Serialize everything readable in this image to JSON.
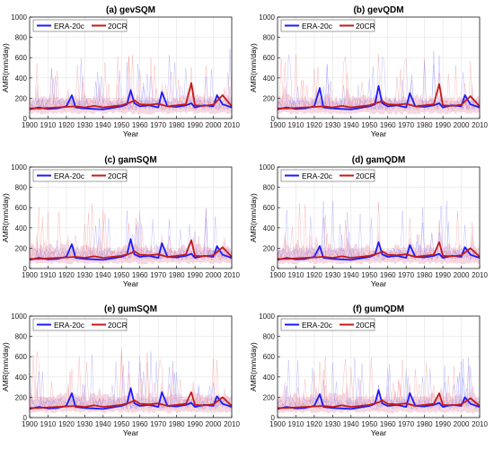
{
  "colors": {
    "era": "#1a1aff",
    "era_light": "#8c8cff",
    "cr": "#c41a1a",
    "cr_light": "#f08a8a",
    "ens_fill": "#f3c9d6",
    "axis": "#000000",
    "grid": "#e3e3e3"
  },
  "chart_data": [
    {
      "type": "line",
      "title": "(a) gevSQM",
      "xlabel": "Year",
      "ylabel": "AMR(mm/day)",
      "xlim": [
        1900,
        2010
      ],
      "ylim": [
        0,
        1000
      ],
      "xticks": [
        "1900",
        "1910",
        "1920",
        "1930",
        "1940",
        "1950",
        "1960",
        "1970",
        "1980",
        "1990",
        "2000",
        "2010"
      ],
      "yticks": [
        "0",
        "200",
        "400",
        "600",
        "800",
        "1000"
      ],
      "grid": true,
      "legend": "top-left",
      "series": [
        {
          "name": "ERA-20c",
          "x": [
            1900,
            1905,
            1910,
            1915,
            1920,
            1923,
            1925,
            1930,
            1935,
            1940,
            1945,
            1950,
            1953,
            1955,
            1957,
            1960,
            1965,
            1970,
            1972,
            1975,
            1980,
            1985,
            1988,
            1990,
            1995,
            2000,
            2002,
            2005,
            2010
          ],
          "values": [
            90,
            110,
            95,
            100,
            120,
            230,
            110,
            100,
            95,
            90,
            105,
            120,
            140,
            280,
            150,
            120,
            130,
            110,
            260,
            120,
            115,
            130,
            150,
            110,
            130,
            120,
            230,
            140,
            110
          ]
        },
        {
          "name": "20CR",
          "x": [
            1900,
            1905,
            1910,
            1915,
            1920,
            1925,
            1930,
            1935,
            1940,
            1945,
            1950,
            1955,
            1957,
            1960,
            1965,
            1970,
            1975,
            1980,
            1985,
            1988,
            1990,
            1995,
            2000,
            2005,
            2010
          ],
          "values": [
            100,
            100,
            105,
            110,
            115,
            120,
            110,
            125,
            110,
            120,
            130,
            160,
            180,
            140,
            135,
            145,
            120,
            130,
            140,
            350,
            130,
            125,
            135,
            230,
            120
          ]
        }
      ]
    },
    {
      "type": "line",
      "title": "(b) gevQDM",
      "xlabel": "Year",
      "ylabel": "AMR(mm/day)",
      "xlim": [
        1900,
        2010
      ],
      "ylim": [
        0,
        1000
      ],
      "xticks": [
        "1900",
        "1910",
        "1920",
        "1930",
        "1940",
        "1950",
        "1960",
        "1970",
        "1980",
        "1990",
        "2000",
        "2010"
      ],
      "yticks": [
        "0",
        "200",
        "400",
        "600",
        "800",
        "1000"
      ],
      "grid": true,
      "legend": "top-left",
      "series": [
        {
          "name": "ERA-20c",
          "x": [
            1900,
            1905,
            1910,
            1915,
            1920,
            1923,
            1925,
            1930,
            1935,
            1940,
            1945,
            1950,
            1953,
            1955,
            1957,
            1960,
            1965,
            1970,
            1972,
            1975,
            1980,
            1985,
            1988,
            1990,
            1995,
            2000,
            2002,
            2005,
            2010
          ],
          "values": [
            90,
            110,
            95,
            100,
            120,
            300,
            110,
            100,
            95,
            90,
            105,
            120,
            140,
            320,
            150,
            120,
            130,
            110,
            250,
            120,
            115,
            130,
            150,
            110,
            130,
            120,
            230,
            140,
            110
          ]
        },
        {
          "name": "20CR",
          "x": [
            1900,
            1905,
            1910,
            1915,
            1920,
            1925,
            1930,
            1935,
            1940,
            1945,
            1950,
            1955,
            1957,
            1960,
            1965,
            1970,
            1975,
            1980,
            1985,
            1988,
            1990,
            1995,
            2000,
            2005,
            2010
          ],
          "values": [
            100,
            100,
            105,
            110,
            115,
            120,
            110,
            125,
            110,
            120,
            130,
            160,
            170,
            140,
            135,
            145,
            120,
            130,
            140,
            340,
            130,
            125,
            135,
            220,
            120
          ]
        }
      ]
    },
    {
      "type": "line",
      "title": "(c) gamSQM",
      "xlabel": "Year",
      "ylabel": "AMR(mm/day)",
      "xlim": [
        1900,
        2010
      ],
      "ylim": [
        0,
        1000
      ],
      "xticks": [
        "1900",
        "1910",
        "1920",
        "1930",
        "1940",
        "1950",
        "1960",
        "1970",
        "1980",
        "1990",
        "2000",
        "2010"
      ],
      "yticks": [
        "0",
        "200",
        "400",
        "600",
        "800",
        "1000"
      ],
      "grid": true,
      "legend": "top-left",
      "series": [
        {
          "name": "ERA-20c",
          "x": [
            1900,
            1905,
            1910,
            1915,
            1920,
            1923,
            1925,
            1930,
            1935,
            1940,
            1945,
            1950,
            1953,
            1955,
            1957,
            1960,
            1965,
            1970,
            1972,
            1975,
            1980,
            1985,
            1988,
            1990,
            1995,
            2000,
            2002,
            2005,
            2010
          ],
          "values": [
            85,
            105,
            90,
            95,
            115,
            240,
            105,
            95,
            90,
            85,
            100,
            115,
            135,
            290,
            140,
            115,
            125,
            105,
            250,
            115,
            110,
            125,
            145,
            105,
            125,
            115,
            220,
            135,
            105
          ]
        },
        {
          "name": "20CR",
          "x": [
            1900,
            1905,
            1910,
            1915,
            1920,
            1925,
            1930,
            1935,
            1940,
            1945,
            1950,
            1955,
            1957,
            1960,
            1965,
            1970,
            1975,
            1980,
            1985,
            1988,
            1990,
            1995,
            2000,
            2005,
            2010
          ],
          "values": [
            95,
            95,
            100,
            105,
            110,
            115,
            105,
            120,
            105,
            115,
            125,
            150,
            170,
            135,
            130,
            140,
            115,
            125,
            135,
            280,
            125,
            120,
            130,
            210,
            115
          ]
        }
      ]
    },
    {
      "type": "line",
      "title": "(d) gamQDM",
      "xlabel": "Year",
      "ylabel": "AMR(mm/day)",
      "xlim": [
        1900,
        2010
      ],
      "ylim": [
        0,
        1000
      ],
      "xticks": [
        "1900",
        "1910",
        "1920",
        "1930",
        "1940",
        "1950",
        "1960",
        "1970",
        "1980",
        "1990",
        "2000",
        "2010"
      ],
      "yticks": [
        "0",
        "200",
        "400",
        "600",
        "800",
        "1000"
      ],
      "grid": true,
      "legend": "top-left",
      "series": [
        {
          "name": "ERA-20c",
          "x": [
            1900,
            1905,
            1910,
            1915,
            1920,
            1923,
            1925,
            1930,
            1935,
            1940,
            1945,
            1950,
            1953,
            1955,
            1957,
            1960,
            1965,
            1970,
            1972,
            1975,
            1980,
            1985,
            1988,
            1990,
            1995,
            2000,
            2002,
            2005,
            2010
          ],
          "values": [
            85,
            105,
            90,
            95,
            115,
            220,
            105,
            95,
            90,
            85,
            100,
            115,
            135,
            260,
            140,
            115,
            125,
            105,
            230,
            115,
            110,
            125,
            145,
            105,
            125,
            115,
            210,
            135,
            105
          ]
        },
        {
          "name": "20CR",
          "x": [
            1900,
            1905,
            1910,
            1915,
            1920,
            1925,
            1930,
            1935,
            1940,
            1945,
            1950,
            1955,
            1957,
            1960,
            1965,
            1970,
            1975,
            1980,
            1985,
            1988,
            1990,
            1995,
            2000,
            2005,
            2010
          ],
          "values": [
            95,
            95,
            100,
            105,
            110,
            115,
            105,
            120,
            105,
            115,
            125,
            150,
            170,
            135,
            130,
            140,
            115,
            125,
            135,
            260,
            125,
            120,
            130,
            200,
            115
          ]
        }
      ]
    },
    {
      "type": "line",
      "title": "(e) gumSQM",
      "xlabel": "Year",
      "ylabel": "AMR(mm/day)",
      "xlim": [
        1900,
        2010
      ],
      "ylim": [
        0,
        1000
      ],
      "xticks": [
        "1900",
        "1910",
        "1920",
        "1930",
        "1940",
        "1950",
        "1960",
        "1970",
        "1980",
        "1990",
        "2000",
        "2010"
      ],
      "yticks": [
        "0",
        "200",
        "400",
        "600",
        "800",
        "1000"
      ],
      "grid": true,
      "legend": "top-left",
      "series": [
        {
          "name": "ERA-20c",
          "x": [
            1900,
            1905,
            1910,
            1915,
            1920,
            1923,
            1925,
            1930,
            1935,
            1940,
            1945,
            1950,
            1953,
            1955,
            1957,
            1960,
            1965,
            1970,
            1972,
            1975,
            1980,
            1985,
            1988,
            1990,
            1995,
            2000,
            2002,
            2005,
            2010
          ],
          "values": [
            85,
            105,
            90,
            95,
            115,
            240,
            105,
            95,
            90,
            85,
            100,
            115,
            135,
            290,
            140,
            115,
            125,
            105,
            250,
            115,
            110,
            125,
            145,
            105,
            125,
            115,
            210,
            135,
            105
          ]
        },
        {
          "name": "20CR",
          "x": [
            1900,
            1905,
            1910,
            1915,
            1920,
            1925,
            1930,
            1935,
            1940,
            1945,
            1950,
            1955,
            1957,
            1960,
            1965,
            1970,
            1975,
            1980,
            1985,
            1988,
            1990,
            1995,
            2000,
            2005,
            2010
          ],
          "values": [
            95,
            95,
            100,
            105,
            110,
            115,
            105,
            120,
            105,
            115,
            125,
            150,
            170,
            135,
            130,
            140,
            115,
            125,
            135,
            250,
            125,
            120,
            130,
            200,
            115
          ]
        }
      ]
    },
    {
      "type": "line",
      "title": "(f) gumQDM",
      "xlabel": "Year",
      "ylabel": "AMR(mm/day)",
      "xlim": [
        1900,
        2010
      ],
      "ylim": [
        0,
        1000
      ],
      "xticks": [
        "1900",
        "1910",
        "1920",
        "1930",
        "1940",
        "1950",
        "1960",
        "1970",
        "1980",
        "1990",
        "2000",
        "2010"
      ],
      "yticks": [
        "0",
        "200",
        "400",
        "600",
        "800",
        "1000"
      ],
      "grid": true,
      "legend": "top-left",
      "series": [
        {
          "name": "ERA-20c",
          "x": [
            1900,
            1905,
            1910,
            1915,
            1920,
            1923,
            1925,
            1930,
            1935,
            1940,
            1945,
            1950,
            1953,
            1955,
            1957,
            1960,
            1965,
            1970,
            1972,
            1975,
            1980,
            1985,
            1988,
            1990,
            1995,
            2000,
            2002,
            2005,
            2010
          ],
          "values": [
            85,
            105,
            90,
            95,
            115,
            230,
            105,
            95,
            90,
            85,
            100,
            115,
            135,
            270,
            140,
            115,
            125,
            105,
            240,
            115,
            110,
            125,
            145,
            105,
            125,
            115,
            200,
            135,
            105
          ]
        },
        {
          "name": "20CR",
          "x": [
            1900,
            1905,
            1910,
            1915,
            1920,
            1925,
            1930,
            1935,
            1940,
            1945,
            1950,
            1955,
            1957,
            1960,
            1965,
            1970,
            1975,
            1980,
            1985,
            1988,
            1990,
            1995,
            2000,
            2005,
            2010
          ],
          "values": [
            95,
            95,
            100,
            105,
            110,
            115,
            105,
            120,
            105,
            115,
            125,
            150,
            170,
            135,
            130,
            140,
            115,
            125,
            135,
            240,
            125,
            120,
            130,
            190,
            115
          ]
        }
      ]
    }
  ]
}
